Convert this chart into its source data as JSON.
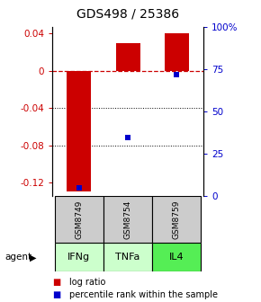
{
  "title": "GDS498 / 25386",
  "samples": [
    "GSM8749",
    "GSM8754",
    "GSM8759"
  ],
  "agents": [
    "IFNg",
    "TNFa",
    "IL4"
  ],
  "log_ratios": [
    -0.13,
    0.03,
    0.04
  ],
  "percentile_ranks": [
    5,
    35,
    72
  ],
  "ylim_left": [
    -0.135,
    0.047
  ],
  "ylim_right": [
    0,
    100
  ],
  "left_yticks": [
    -0.12,
    -0.08,
    -0.04,
    0.0,
    0.04
  ],
  "right_yticks": [
    0,
    25,
    50,
    75,
    100
  ],
  "right_yticklabels": [
    "0",
    "25",
    "50",
    "75",
    "100%"
  ],
  "bar_color": "#cc0000",
  "dot_color": "#0000cc",
  "zero_line_color": "#cc0000",
  "dotted_line_color": "#000000",
  "sample_box_color": "#cccccc",
  "agent_colors": [
    "#ccffcc",
    "#ccffcc",
    "#55ee55"
  ],
  "background_color": "#ffffff",
  "title_fontsize": 10,
  "tick_fontsize": 7.5,
  "legend_fontsize": 7,
  "bar_width": 0.5
}
